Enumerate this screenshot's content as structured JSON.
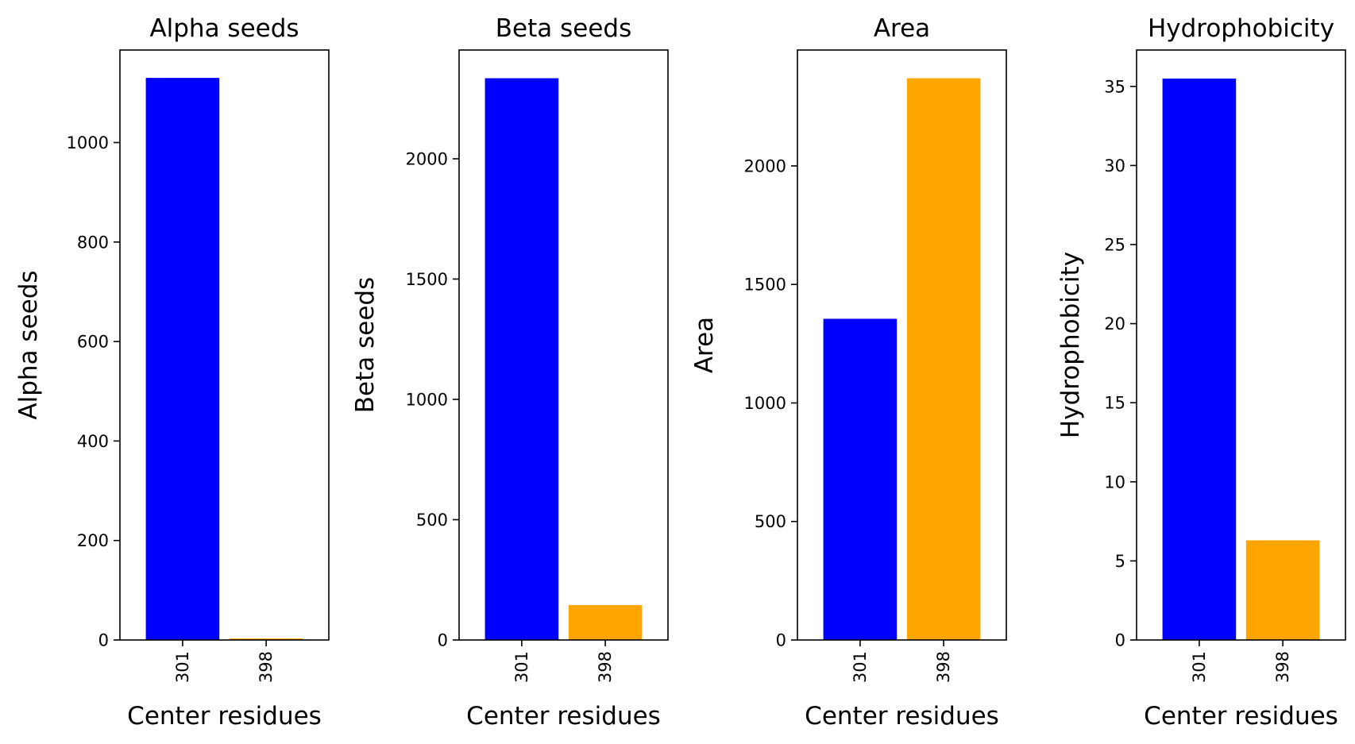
{
  "chart_data": [
    {
      "type": "bar",
      "title": "Alpha seeds",
      "xlabel": "Center residues",
      "ylabel": "Alpha seeds",
      "categories": [
        "301",
        "398"
      ],
      "values": [
        1130,
        3
      ],
      "colors": [
        "#0000ff",
        "#ffa500"
      ],
      "ylim": [
        0,
        1186
      ],
      "yticks": [
        0,
        200,
        400,
        600,
        800,
        1000
      ],
      "grid": false
    },
    {
      "type": "bar",
      "title": "Beta seeds",
      "xlabel": "Center residues",
      "ylabel": "Beta seeds",
      "categories": [
        "301",
        "398"
      ],
      "values": [
        2335,
        145
      ],
      "colors": [
        "#0000ff",
        "#ffa500"
      ],
      "ylim": [
        0,
        2452
      ],
      "yticks": [
        0,
        500,
        1000,
        1500,
        2000
      ],
      "grid": false
    },
    {
      "type": "bar",
      "title": "Area",
      "xlabel": "Center residues",
      "ylabel": "Area",
      "categories": [
        "301",
        "398"
      ],
      "values": [
        1355,
        2370
      ],
      "colors": [
        "#0000ff",
        "#ffa500"
      ],
      "ylim": [
        0,
        2489
      ],
      "yticks": [
        0,
        500,
        1000,
        1500,
        2000
      ],
      "grid": false
    },
    {
      "type": "bar",
      "title": "Hydrophobicity",
      "xlabel": "Center residues",
      "ylabel": "Hydrophobicity",
      "categories": [
        "301",
        "398"
      ],
      "values": [
        35.5,
        6.3
      ],
      "colors": [
        "#0000ff",
        "#ffa500"
      ],
      "ylim": [
        0,
        37.3
      ],
      "yticks": [
        0,
        5,
        10,
        15,
        20,
        25,
        30,
        35
      ],
      "grid": false
    }
  ]
}
